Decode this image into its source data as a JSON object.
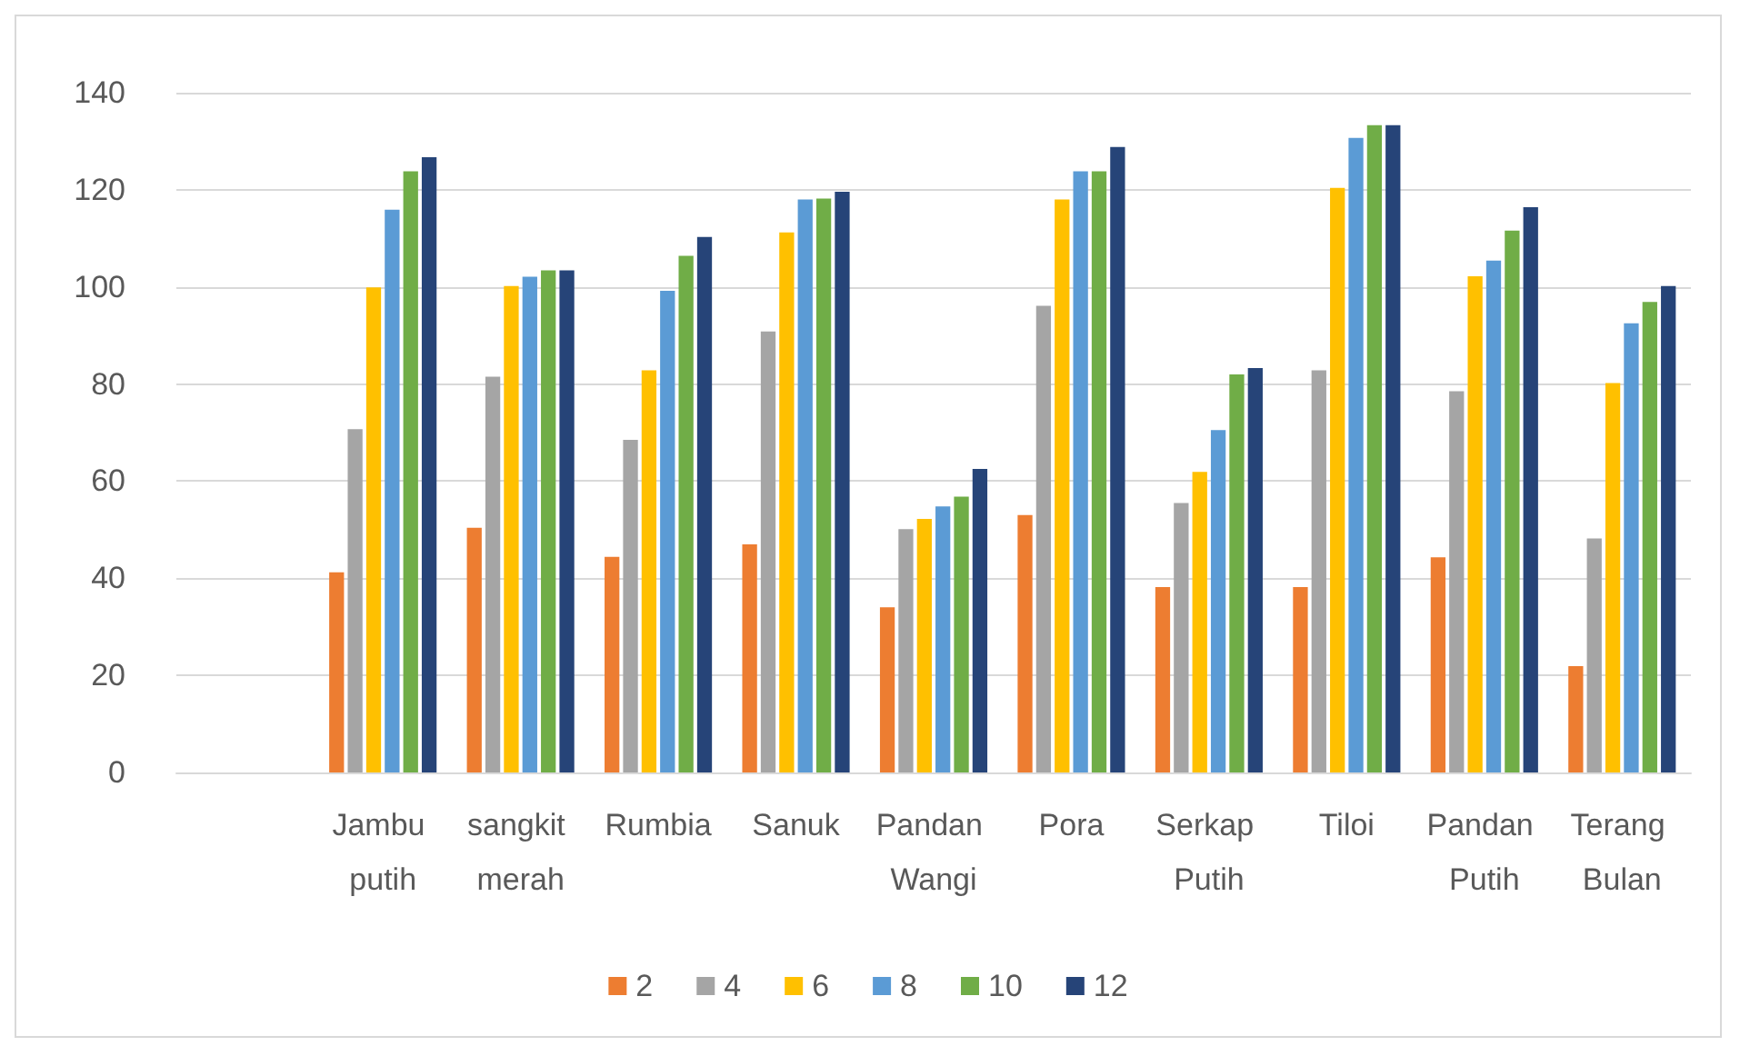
{
  "chart_data": {
    "type": "bar",
    "categories": [
      null,
      "Jambu putih",
      "sangkit merah",
      "Rumbia",
      "Sanuk",
      "Pandan Wangi",
      "Pora",
      "Serkap Putih",
      "Tiloi",
      "Pandan Putih",
      "Terang Bulan"
    ],
    "series": [
      {
        "name": "2",
        "color": "#ed7d31",
        "values": [
          null,
          41.2,
          50.4,
          44.4,
          47.0,
          34.0,
          53.0,
          38.2,
          38.2,
          44.3,
          21.9
        ]
      },
      {
        "name": "4",
        "color": "#a5a5a5",
        "values": [
          null,
          70.7,
          81.5,
          68.5,
          90.8,
          50.1,
          96.1,
          55.5,
          82.8,
          78.5,
          48.2
        ]
      },
      {
        "name": "6",
        "color": "#ffc000",
        "values": [
          null,
          99.9,
          100.2,
          82.8,
          111.2,
          52.2,
          118.0,
          61.9,
          120.4,
          102.2,
          80.2
        ]
      },
      {
        "name": "8",
        "color": "#5b9bd5",
        "values": [
          null,
          115.9,
          102.1,
          99.2,
          118.0,
          54.8,
          123.8,
          70.5,
          130.7,
          105.4,
          92.5
        ]
      },
      {
        "name": "10",
        "color": "#70ad47",
        "values": [
          null,
          123.8,
          103.4,
          106.4,
          118.2,
          56.8,
          123.8,
          82.0,
          133.3,
          111.6,
          96.9
        ]
      },
      {
        "name": "12",
        "color": "#264478",
        "values": [
          null,
          126.7,
          103.4,
          110.3,
          119.6,
          62.5,
          128.8,
          83.3,
          133.3,
          116.4,
          100.2
        ]
      }
    ],
    "ylim": [
      0,
      140
    ],
    "yticks": [
      0,
      20,
      40,
      60,
      80,
      100,
      120,
      140
    ],
    "grid": "y",
    "legend": "bottom"
  }
}
